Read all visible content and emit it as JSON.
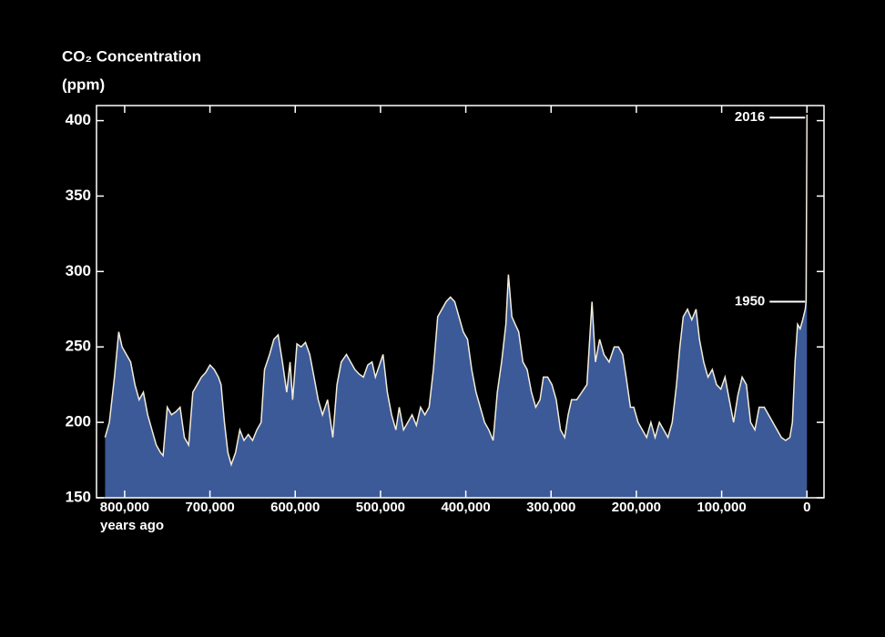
{
  "chart_data": {
    "type": "area",
    "title": "CO₂ Concentration",
    "y_label": "(ppm)",
    "x_label": "years ago",
    "x": [
      823000,
      818000,
      812000,
      807000,
      803000,
      798000,
      793000,
      788000,
      783000,
      778000,
      773000,
      768000,
      763000,
      758000,
      755000,
      750000,
      745000,
      740000,
      735000,
      730000,
      725000,
      720000,
      715000,
      710000,
      705000,
      700000,
      695000,
      690000,
      687000,
      683000,
      679000,
      675000,
      670000,
      665000,
      660000,
      655000,
      650000,
      645000,
      640000,
      636000,
      630000,
      625000,
      620000,
      615000,
      610000,
      606000,
      603000,
      598000,
      593000,
      588000,
      583000,
      578000,
      573000,
      568000,
      562000,
      556000,
      551000,
      546000,
      540000,
      535000,
      530000,
      525000,
      520000,
      515000,
      510000,
      506000,
      500000,
      497000,
      492000,
      487000,
      482000,
      478000,
      473000,
      468000,
      463000,
      458000,
      453000,
      448000,
      443000,
      438000,
      433000,
      428000,
      423000,
      418000,
      413000,
      408000,
      403000,
      398000,
      393000,
      388000,
      383000,
      378000,
      373000,
      368000,
      363000,
      358000,
      353000,
      350000,
      346000,
      342000,
      338000,
      333000,
      328000,
      323000,
      318000,
      313000,
      309000,
      304000,
      299000,
      294000,
      289000,
      284000,
      280000,
      276000,
      270000,
      264000,
      258000,
      252000,
      248000,
      243000,
      238000,
      232000,
      226000,
      221000,
      216000,
      212000,
      207000,
      203000,
      198000,
      193000,
      188000,
      183000,
      178000,
      173000,
      168000,
      163000,
      158000,
      153000,
      149000,
      145000,
      140000,
      135000,
      130000,
      126000,
      121000,
      116000,
      111000,
      106000,
      101000,
      96000,
      91000,
      86000,
      81000,
      76000,
      71000,
      66000,
      61000,
      56000,
      50000,
      45000,
      40000,
      35000,
      30000,
      25000,
      20000,
      17000,
      14000,
      11000,
      8000,
      5000,
      2000,
      1000,
      0
    ],
    "values": [
      190,
      200,
      230,
      260,
      250,
      245,
      240,
      225,
      215,
      220,
      205,
      195,
      185,
      180,
      178,
      210,
      205,
      207,
      210,
      190,
      185,
      220,
      225,
      230,
      233,
      238,
      235,
      230,
      225,
      200,
      180,
      172,
      180,
      195,
      188,
      192,
      188,
      195,
      200,
      235,
      245,
      255,
      258,
      240,
      220,
      240,
      215,
      252,
      250,
      253,
      245,
      230,
      215,
      205,
      215,
      190,
      225,
      240,
      245,
      240,
      235,
      232,
      230,
      238,
      240,
      230,
      240,
      245,
      220,
      205,
      195,
      210,
      195,
      200,
      205,
      198,
      210,
      205,
      210,
      235,
      270,
      275,
      280,
      283,
      280,
      270,
      260,
      255,
      235,
      220,
      210,
      200,
      195,
      188,
      220,
      240,
      265,
      298,
      270,
      265,
      260,
      240,
      235,
      220,
      210,
      215,
      230,
      230,
      225,
      215,
      195,
      190,
      205,
      215,
      215,
      220,
      225,
      280,
      240,
      255,
      245,
      240,
      250,
      250,
      245,
      230,
      210,
      210,
      200,
      195,
      190,
      200,
      190,
      200,
      195,
      190,
      200,
      225,
      250,
      270,
      275,
      268,
      275,
      255,
      240,
      230,
      235,
      225,
      222,
      230,
      215,
      200,
      218,
      230,
      225,
      200,
      195,
      210,
      210,
      205,
      200,
      195,
      190,
      188,
      190,
      200,
      240,
      265,
      262,
      268,
      275,
      280,
      404
    ],
    "fill": "#3c5a98",
    "line_color": "#f3ecd9",
    "xlim": [
      833000,
      -20000
    ],
    "xticks": [
      {
        "value": 800000,
        "label": "800,000"
      },
      {
        "value": 700000,
        "label": "700,000"
      },
      {
        "value": 600000,
        "label": "600,000"
      },
      {
        "value": 500000,
        "label": "500,000"
      },
      {
        "value": 400000,
        "label": "400,000"
      },
      {
        "value": 300000,
        "label": "300,000"
      },
      {
        "value": 200000,
        "label": "200,000"
      },
      {
        "value": 100000,
        "label": "100,000"
      },
      0
    ],
    "ylim": [
      150,
      410
    ],
    "yticks": [
      150,
      200,
      250,
      300,
      350,
      400
    ],
    "annotations": [
      {
        "text": "2016",
        "x": 0,
        "y": 402
      },
      {
        "text": "1950",
        "x": 0,
        "y": 280
      }
    ]
  }
}
